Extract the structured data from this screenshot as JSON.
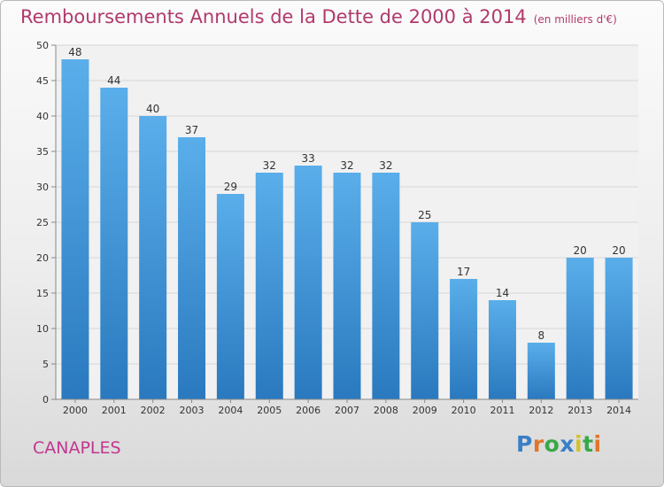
{
  "title": "Remboursements Annuels de la Dette de 2000 à 2014",
  "subtitle": "(en milliers d'€)",
  "town": "CANAPLES",
  "logo": {
    "text": "Proxiti",
    "colors": [
      "#3a7fc6",
      "#e0762a",
      "#3aa84a",
      "#3a7fc6",
      "#d4c12a",
      "#3aa84a",
      "#e0762a"
    ]
  },
  "colors": {
    "bar_top": "#5aaeea",
    "bar_bottom": "#2a79bf",
    "title": "#b03a6c",
    "town": "#c2368f"
  },
  "chart_data": {
    "type": "bar",
    "categories": [
      "2000",
      "2001",
      "2002",
      "2003",
      "2004",
      "2005",
      "2006",
      "2007",
      "2008",
      "2009",
      "2010",
      "2011",
      "2012",
      "2013",
      "2014"
    ],
    "values": [
      48,
      44,
      40,
      37,
      29,
      32,
      33,
      32,
      32,
      25,
      17,
      14,
      8,
      20,
      20
    ],
    "yticks": [
      0,
      5,
      10,
      15,
      20,
      25,
      30,
      35,
      40,
      45,
      50
    ],
    "ylim": [
      0,
      50
    ],
    "grid": true
  }
}
